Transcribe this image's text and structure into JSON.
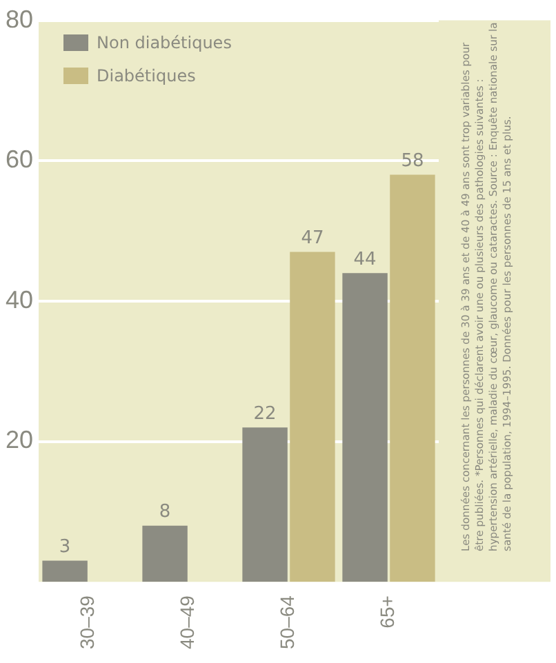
{
  "chart_data": {
    "type": "bar",
    "categories": [
      "30–39",
      "40–49",
      "50–64",
      "65+"
    ],
    "series": [
      {
        "name": "Non diabétiques",
        "color": "#8c8c82",
        "values": [
          3,
          8,
          22,
          44
        ]
      },
      {
        "name": "Diabétiques",
        "color": "#c9bd84",
        "values": [
          null,
          null,
          47,
          58
        ]
      }
    ],
    "ylim": [
      0,
      80
    ],
    "yticks": [
      20,
      40,
      60,
      80
    ],
    "grid": "y",
    "legend": "top left",
    "data_labels": true,
    "annotations": [
      "Les données concernant les personnes de 30 à 39 ans et de 40 à 49 ans sont trop variables pour être publiées. *Personnes qui déclarent avoir une ou plusieurs des pathologies suivantes : hypertension artérielle, maladie du cœur, glaucome ou cataractes. Source : Enquête nationale sur la santé de la population, 1994–1995. Données pour les personnes de 15 ans et plus."
    ]
  }
}
